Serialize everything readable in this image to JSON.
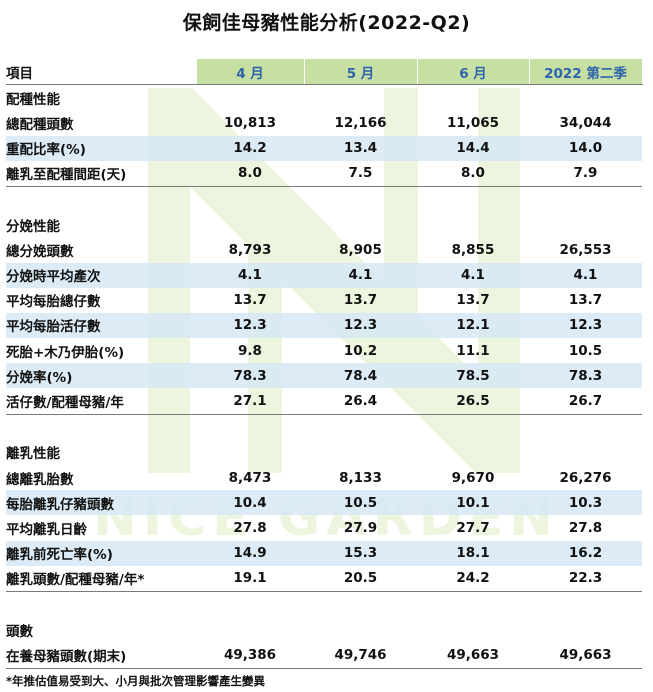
{
  "title": "保飼佳母豬性能分析(2022-Q2)",
  "header": {
    "item": "項目",
    "columns": [
      "4 月",
      "5 月",
      "6 月",
      "2022 第二季"
    ]
  },
  "sections": [
    {
      "name": "配種性能",
      "rows": [
        {
          "label": "總配種頭數",
          "values": [
            "10,813",
            "12,166",
            "11,065",
            "34,044"
          ]
        },
        {
          "label": "重配比率(%)",
          "values": [
            "14.2",
            "13.4",
            "14.4",
            "14.0"
          ]
        },
        {
          "label": "離乳至配種間距(天)",
          "values": [
            "8.0",
            "7.5",
            "8.0",
            "7.9"
          ]
        }
      ]
    },
    {
      "name": "分娩性能",
      "rows": [
        {
          "label": "總分娩頭數",
          "values": [
            "8,793",
            "8,905",
            "8,855",
            "26,553"
          ]
        },
        {
          "label": "分娩時平均產次",
          "values": [
            "4.1",
            "4.1",
            "4.1",
            "4.1"
          ]
        },
        {
          "label": "平均每胎總仔數",
          "values": [
            "13.7",
            "13.7",
            "13.7",
            "13.7"
          ]
        },
        {
          "label": "平均每胎活仔數",
          "values": [
            "12.3",
            "12.3",
            "12.1",
            "12.3"
          ]
        },
        {
          "label": "死胎+木乃伊胎(%)",
          "values": [
            "9.8",
            "10.2",
            "11.1",
            "10.5"
          ]
        },
        {
          "label": "分娩率(%)",
          "values": [
            "78.3",
            "78.4",
            "78.5",
            "78.3"
          ]
        },
        {
          "label": "活仔數/配種母豬/年",
          "values": [
            "27.1",
            "26.4",
            "26.5",
            "26.7"
          ]
        }
      ]
    },
    {
      "name": "離乳性能",
      "rows": [
        {
          "label": "總離乳胎數",
          "values": [
            "8,473",
            "8,133",
            "9,670",
            "26,276"
          ]
        },
        {
          "label": "每胎離乳仔豬頭數",
          "values": [
            "10.4",
            "10.5",
            "10.1",
            "10.3"
          ]
        },
        {
          "label": "平均離乳日齡",
          "values": [
            "27.8",
            "27.9",
            "27.7",
            "27.8"
          ]
        },
        {
          "label": "離乳前死亡率(%)",
          "values": [
            "14.9",
            "15.3",
            "18.1",
            "16.2"
          ]
        },
        {
          "label": "離乳頭數/配種母豬/年*",
          "values": [
            "19.1",
            "20.5",
            "24.2",
            "22.3"
          ]
        }
      ]
    },
    {
      "name": "頭數",
      "rows": [
        {
          "label": "在養母豬頭數(期末)",
          "values": [
            "49,386",
            "49,746",
            "49,663",
            "49,663"
          ]
        }
      ]
    }
  ],
  "footnote": "*年推估值易受到大、小月與批次管理影響產生變異",
  "watermark": {
    "text": "NICE GARDEN",
    "color": "#eef5df"
  },
  "colors": {
    "header_bg": "#c6dfa3",
    "header_text": "#2f63ad",
    "row_shade": "#d6e8f4"
  }
}
